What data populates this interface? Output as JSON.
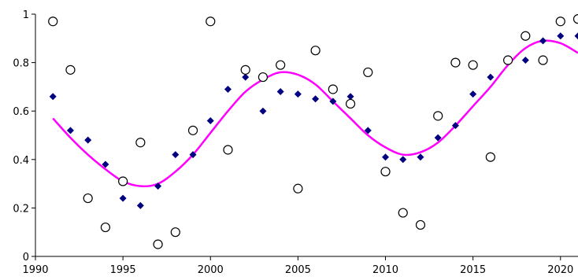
{
  "chart_data": {
    "type": "scatter",
    "title": "",
    "xlabel": "",
    "ylabel": "",
    "xlim": [
      1990,
      2021
    ],
    "ylim": [
      0,
      1
    ],
    "x_ticks": [
      1990,
      1995,
      2000,
      2005,
      2010,
      2015,
      2020
    ],
    "x_tick_labels": [
      "1990",
      "1995",
      "2000",
      "2005",
      "2010",
      "2015",
      "2020"
    ],
    "y_ticks": [
      0,
      0.2,
      0.4,
      0.6,
      0.8,
      1
    ],
    "y_tick_labels": [
      "0",
      "0.2",
      "0.4",
      "0.6",
      "0.8",
      "1"
    ],
    "grid": false,
    "legend": "none",
    "series": [
      {
        "marker": "open-circle",
        "color": "#000000",
        "x": [
          1991,
          1992,
          1993,
          1994,
          1995,
          1996,
          1997,
          1998,
          1999,
          2000,
          2001,
          2002,
          2003,
          2004,
          2005,
          2006,
          2007,
          2008,
          2009,
          2010,
          2011,
          2012,
          2013,
          2014,
          2015,
          2016,
          2017,
          2018,
          2019,
          2020,
          2021
        ],
        "y": [
          0.97,
          0.77,
          0.24,
          0.12,
          0.31,
          0.47,
          0.05,
          0.1,
          0.52,
          0.97,
          0.44,
          0.77,
          0.74,
          0.79,
          0.28,
          0.85,
          0.69,
          0.63,
          0.76,
          0.35,
          0.18,
          0.13,
          0.58,
          0.8,
          0.79,
          0.41,
          0.81,
          0.91,
          0.81,
          0.97,
          0.98
        ]
      },
      {
        "marker": "diamond",
        "color": "#000080",
        "x": [
          1991,
          1992,
          1993,
          1994,
          1995,
          1996,
          1997,
          1998,
          1999,
          2000,
          2001,
          2002,
          2003,
          2004,
          2005,
          2006,
          2007,
          2008,
          2009,
          2010,
          2011,
          2012,
          2013,
          2014,
          2015,
          2016,
          2017,
          2018,
          2019,
          2020,
          2021
        ],
        "y": [
          0.66,
          0.52,
          0.48,
          0.38,
          0.24,
          0.21,
          0.29,
          0.42,
          0.42,
          0.56,
          0.69,
          0.74,
          0.6,
          0.68,
          0.67,
          0.65,
          0.64,
          0.66,
          0.52,
          0.41,
          0.4,
          0.41,
          0.49,
          0.54,
          0.67,
          0.74,
          0.81,
          0.81,
          0.89,
          0.91,
          0.91
        ]
      },
      {
        "marker": "line",
        "color": "#ff00ff",
        "x": [
          1991,
          1992,
          1993,
          1994,
          1995,
          1996,
          1997,
          1998,
          1999,
          2000,
          2001,
          2002,
          2003,
          2004,
          2005,
          2006,
          2007,
          2008,
          2009,
          2010,
          2011,
          2012,
          2013,
          2014,
          2015,
          2016,
          2017,
          2018,
          2019,
          2020,
          2021
        ],
        "y": [
          0.57,
          0.49,
          0.42,
          0.36,
          0.31,
          0.29,
          0.3,
          0.35,
          0.42,
          0.51,
          0.6,
          0.68,
          0.73,
          0.76,
          0.75,
          0.71,
          0.64,
          0.57,
          0.5,
          0.45,
          0.42,
          0.43,
          0.47,
          0.54,
          0.62,
          0.7,
          0.79,
          0.86,
          0.89,
          0.88,
          0.84
        ]
      }
    ]
  }
}
